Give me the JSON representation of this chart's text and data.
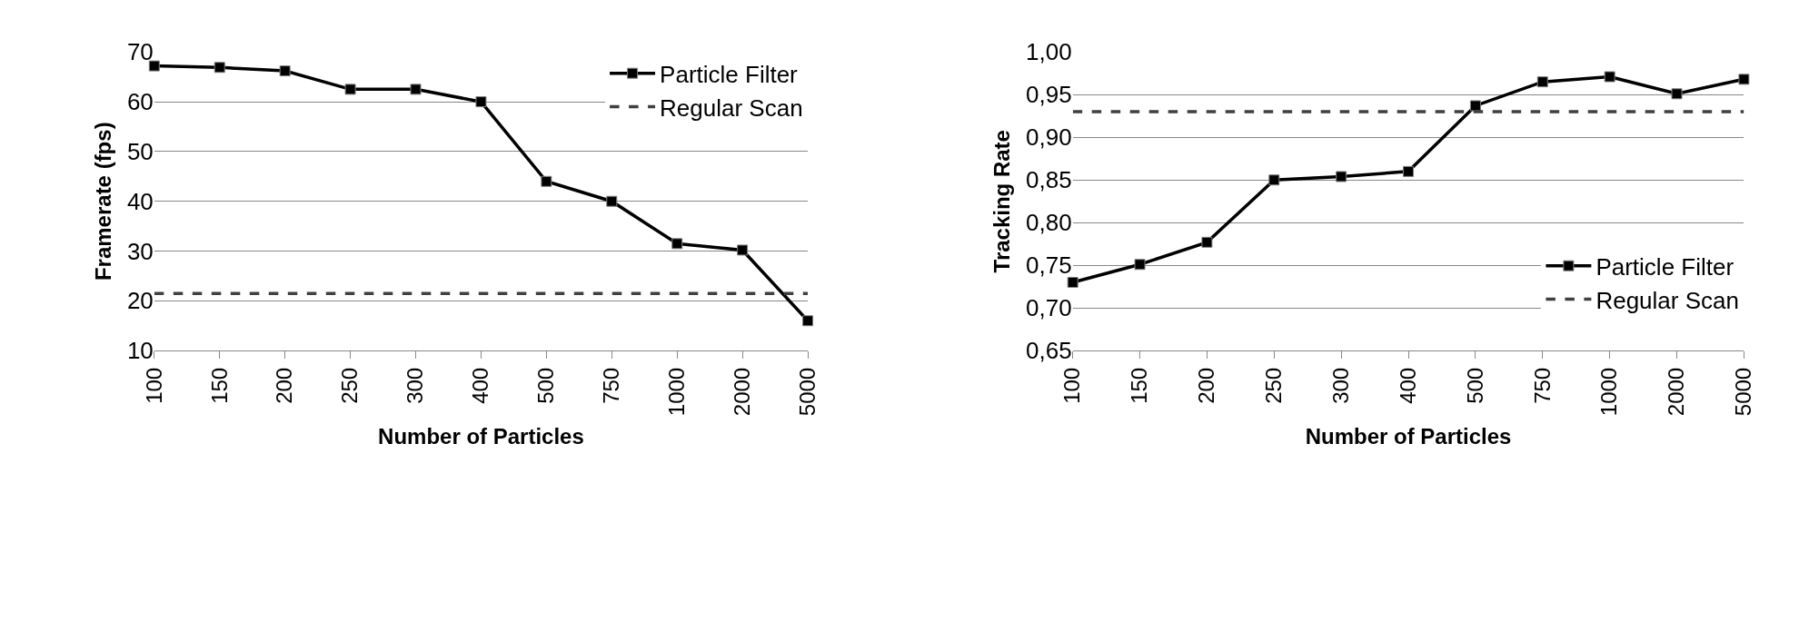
{
  "chart_data": [
    {
      "type": "line",
      "xlabel": "Number of Particles",
      "ylabel": "Framerate (fps)",
      "categories": [
        "100",
        "150",
        "200",
        "250",
        "300",
        "400",
        "500",
        "750",
        "1000",
        "2000",
        "5000"
      ],
      "series": [
        {
          "name": "Particle Filter",
          "color": "#000000",
          "marker": "square",
          "line_style": "solid",
          "values": [
            67.2,
            66.9,
            66.2,
            62.5,
            62.5,
            60,
            44,
            40,
            31.5,
            30.2,
            16
          ]
        },
        {
          "name": "Regular Scan",
          "color": "#404040",
          "marker": "none",
          "line_style": "dashed",
          "values": [
            21.5,
            21.5,
            21.5,
            21.5,
            21.5,
            21.5,
            21.5,
            21.5,
            21.5,
            21.5,
            21.5
          ]
        }
      ],
      "ylim": [
        10,
        70
      ],
      "yticks": [
        10,
        20,
        30,
        40,
        50,
        60,
        70
      ],
      "grid": "y",
      "legend": "top right"
    },
    {
      "type": "line",
      "xlabel": "Number of Particles",
      "ylabel": "Tracking Rate",
      "categories": [
        "100",
        "150",
        "200",
        "250",
        "300",
        "400",
        "500",
        "750",
        "1000",
        "2000",
        "5000"
      ],
      "series": [
        {
          "name": "Particle Filter",
          "color": "#000000",
          "marker": "square",
          "line_style": "solid",
          "values": [
            0.73,
            0.751,
            0.777,
            0.85,
            0.854,
            0.86,
            0.937,
            0.965,
            0.971,
            0.951,
            0.968
          ]
        },
        {
          "name": "Regular Scan",
          "color": "#404040",
          "marker": "none",
          "line_style": "dashed",
          "values": [
            0.93,
            0.93,
            0.93,
            0.93,
            0.93,
            0.93,
            0.93,
            0.93,
            0.93,
            0.93,
            0.93
          ]
        }
      ],
      "ylim": [
        0.65,
        1.0
      ],
      "yticks": [
        {
          "value": 0.65,
          "label": "0,65"
        },
        {
          "value": 0.7,
          "label": "0,70"
        },
        {
          "value": 0.75,
          "label": "0,75"
        },
        {
          "value": 0.8,
          "label": "0,80"
        },
        {
          "value": 0.85,
          "label": "0,85"
        },
        {
          "value": 0.9,
          "label": "0,90"
        },
        {
          "value": 0.95,
          "label": "0,95"
        },
        {
          "value": 1.0,
          "label": "1,00"
        }
      ],
      "grid": "y",
      "legend": "bottom right"
    }
  ]
}
